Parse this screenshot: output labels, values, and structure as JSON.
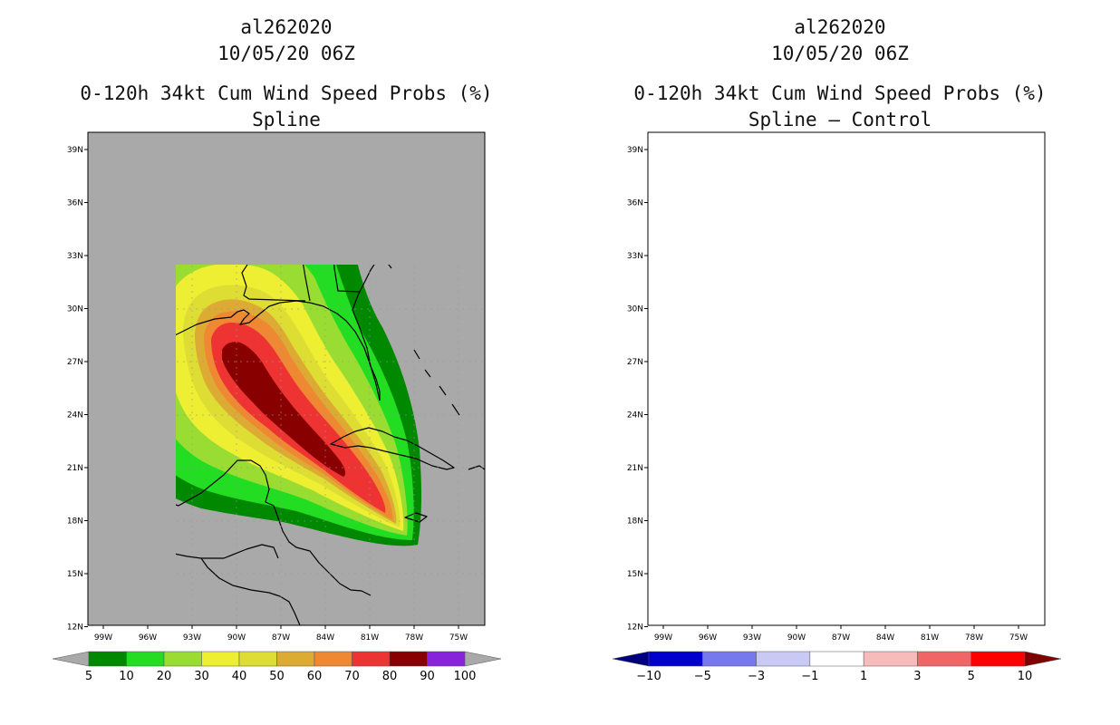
{
  "panels": [
    {
      "storm_id": "al262020",
      "datetime": "10/05/20 06Z",
      "product": "0-120h 34kt Cum Wind Speed Probs (%)",
      "subtitle": "Spline",
      "colorbar": {
        "colors": [
          "#008800",
          "#22dd22",
          "#99dd33",
          "#eeee33",
          "#dddd33",
          "#ddaa33",
          "#ee8833",
          "#ee3333",
          "#880000",
          "#8822dd"
        ],
        "labels": [
          "5",
          "10",
          "20",
          "30",
          "40",
          "50",
          "60",
          "70",
          "80",
          "90",
          "100"
        ],
        "end_arrow_color": "#a9a9a9"
      },
      "background_color": "#a9a9a9"
    },
    {
      "storm_id": "al262020",
      "datetime": "10/05/20 06Z",
      "product": "0-120h 34kt Cum Wind Speed Probs (%)",
      "subtitle": "Spline – Control",
      "colorbar": {
        "colors": [
          "#0000cc",
          "#7777ee",
          "#c9c9f5",
          "#ffffff",
          "#f8bbbb",
          "#f06666",
          "#ff0000"
        ],
        "labels": [
          "−10",
          "−5",
          "−3",
          "−1",
          "1",
          "3",
          "5",
          "10"
        ],
        "left_arrow_color": "#00007f",
        "right_arrow_color": "#7f0000"
      },
      "background_color": "#ffffff"
    }
  ],
  "map": {
    "lon_ticks": [
      "99W",
      "96W",
      "93W",
      "90W",
      "87W",
      "84W",
      "81W",
      "78W",
      "75W"
    ],
    "lat_ticks": [
      "39N",
      "36N",
      "33N",
      "30N",
      "27N",
      "24N",
      "21N",
      "18N",
      "15N",
      "12N"
    ],
    "lon_range": [
      -100,
      -74
    ],
    "lat_range": [
      12,
      40
    ]
  }
}
